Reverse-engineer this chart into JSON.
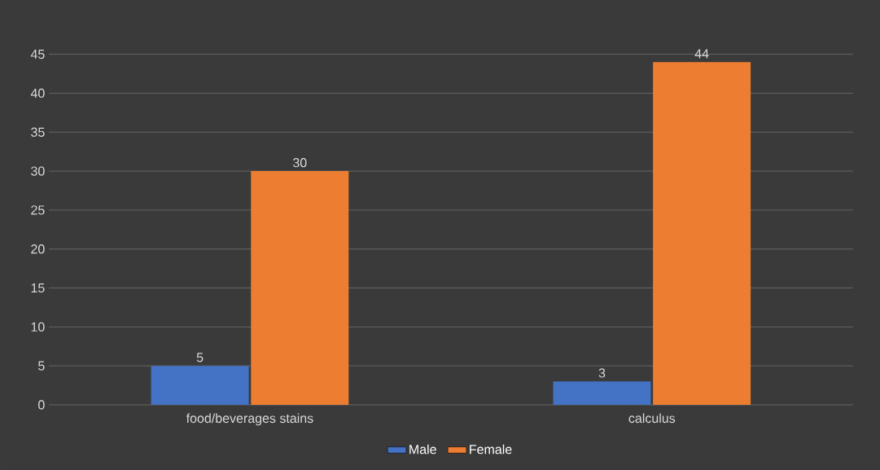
{
  "chart_data": {
    "type": "bar",
    "categories": [
      "food/beverages stains",
      "calculus"
    ],
    "series": [
      {
        "name": "Male",
        "color": "#4472c4",
        "values": [
          5,
          3
        ]
      },
      {
        "name": "Female",
        "color": "#ed7d31",
        "values": [
          30,
          44
        ]
      }
    ],
    "ylim": [
      0,
      45
    ],
    "yticks": [
      0,
      5,
      10,
      15,
      20,
      25,
      30,
      35,
      40,
      45
    ],
    "grid": "y",
    "legend": "bottom",
    "data_labels": true
  }
}
